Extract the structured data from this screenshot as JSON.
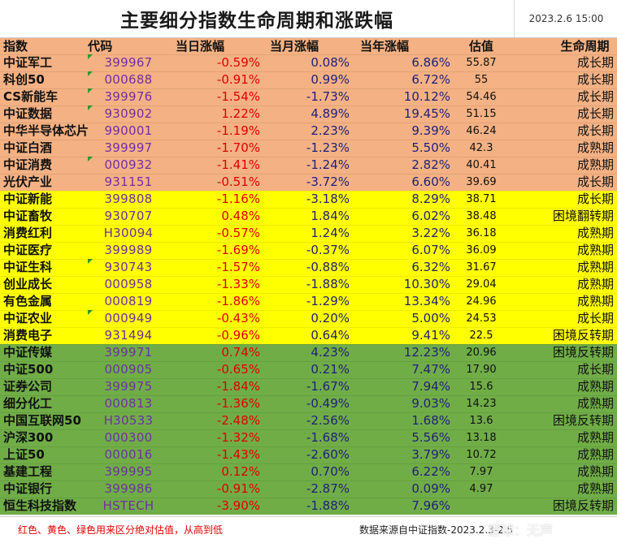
{
  "header": {
    "title": "主要细分指数生命周期和涨跌幅",
    "datetime": "2023.2.6 15:00"
  },
  "columns": [
    "指数",
    "代码",
    "当日涨幅",
    "当月涨幅",
    "当年涨幅",
    "估值",
    "生命周期"
  ],
  "group_colors": {
    "orange": "#f4b183",
    "yellow": "#ffff00",
    "green": "#70ad47"
  },
  "text_colors": {
    "negative": "#e00000",
    "code": "#7030a0",
    "values": "#1f1f7a"
  },
  "rows": [
    {
      "name": "中证军工",
      "code": "399967",
      "day": "-0.59%",
      "month": "0.08%",
      "year": "6.86%",
      "val": "55.87",
      "life": "成长期",
      "group": "orange"
    },
    {
      "name": "科创50",
      "code": "000688",
      "day": "-0.91%",
      "month": "0.99%",
      "year": "6.72%",
      "val": "55",
      "life": "成长期",
      "group": "orange"
    },
    {
      "name": "CS新能车",
      "code": "399976",
      "day": "-1.54%",
      "month": "-1.73%",
      "year": "10.12%",
      "val": "54.46",
      "life": "成长期",
      "group": "orange"
    },
    {
      "name": "中证数据",
      "code": "930902",
      "day": "1.22%",
      "month": "4.89%",
      "year": "19.45%",
      "val": "51.15",
      "life": "成长期",
      "group": "orange"
    },
    {
      "name": "中华半导体芯片",
      "code": "990001",
      "day": "-1.19%",
      "month": "2.23%",
      "year": "9.39%",
      "val": "46.24",
      "life": "成长期",
      "group": "orange"
    },
    {
      "name": "中证白酒",
      "code": "399997",
      "day": "-1.70%",
      "month": "-1.23%",
      "year": "5.50%",
      "val": "42.3",
      "life": "成熟期",
      "group": "orange"
    },
    {
      "name": "中证消费",
      "code": "000932",
      "day": "-1.41%",
      "month": "-1.24%",
      "year": "2.82%",
      "val": "40.41",
      "life": "成熟期",
      "group": "orange"
    },
    {
      "name": "光伏产业",
      "code": "931151",
      "day": "-0.51%",
      "month": "-3.72%",
      "year": "6.60%",
      "val": "39.69",
      "life": "成长期",
      "group": "orange"
    },
    {
      "name": "中证新能",
      "code": "399808",
      "day": "-1.16%",
      "month": "-3.18%",
      "year": "8.29%",
      "val": "38.71",
      "life": "成长期",
      "group": "yellow"
    },
    {
      "name": "中证畜牧",
      "code": "930707",
      "day": "0.48%",
      "month": "1.84%",
      "year": "6.02%",
      "val": "38.48",
      "life": "困境翻转期",
      "group": "yellow"
    },
    {
      "name": "消费红利",
      "code": "H30094",
      "day": "-0.57%",
      "month": "1.24%",
      "year": "3.22%",
      "val": "36.18",
      "life": "成熟期",
      "group": "yellow"
    },
    {
      "name": "中证医疗",
      "code": "399989",
      "day": "-1.69%",
      "month": "-0.37%",
      "year": "6.07%",
      "val": "36.09",
      "life": "成熟期",
      "group": "yellow"
    },
    {
      "name": "中证生科",
      "code": "930743",
      "day": "-1.57%",
      "month": "-0.88%",
      "year": "6.32%",
      "val": "31.67",
      "life": "成熟期",
      "group": "yellow"
    },
    {
      "name": "创业成长",
      "code": "000958",
      "day": "-1.33%",
      "month": "-1.88%",
      "year": "10.30%",
      "val": "29.04",
      "life": "成熟期",
      "group": "yellow"
    },
    {
      "name": "有色金属",
      "code": "000819",
      "day": "-1.86%",
      "month": "-1.29%",
      "year": "13.34%",
      "val": "24.96",
      "life": "成熟期",
      "group": "yellow"
    },
    {
      "name": "中证农业",
      "code": "000949",
      "day": "-0.43%",
      "month": "0.20%",
      "year": "5.00%",
      "val": "24.53",
      "life": "成长期",
      "group": "yellow"
    },
    {
      "name": "消费电子",
      "code": "931494",
      "day": "-0.96%",
      "month": "0.64%",
      "year": "9.41%",
      "val": "22.5",
      "life": "困境反转期",
      "group": "yellow"
    },
    {
      "name": "中证传媒",
      "code": "399971",
      "day": "0.74%",
      "month": "4.23%",
      "year": "12.23%",
      "val": "20.96",
      "life": "困境反转期",
      "group": "green"
    },
    {
      "name": "中证500",
      "code": "000905",
      "day": "-0.65%",
      "month": "0.21%",
      "year": "7.47%",
      "val": "17.90",
      "life": "成长期",
      "group": "green"
    },
    {
      "name": "证券公司",
      "code": "399975",
      "day": "-1.84%",
      "month": "-1.67%",
      "year": "7.94%",
      "val": "15.6",
      "life": "成熟期",
      "group": "green"
    },
    {
      "name": "细分化工",
      "code": "000813",
      "day": "-1.36%",
      "month": "-0.49%",
      "year": "9.03%",
      "val": "14.23",
      "life": "成熟期",
      "group": "green"
    },
    {
      "name": "中国互联网50",
      "code": "H30533",
      "day": "-2.48%",
      "month": "-2.56%",
      "year": "1.68%",
      "val": "13.6",
      "life": "困境反转期",
      "group": "green"
    },
    {
      "name": "沪深300",
      "code": "000300",
      "day": "-1.32%",
      "month": "-1.68%",
      "year": "5.56%",
      "val": "13.18",
      "life": "成熟期",
      "group": "green"
    },
    {
      "name": "上证50",
      "code": "000016",
      "day": "-1.43%",
      "month": "-2.60%",
      "year": "3.79%",
      "val": "10.72",
      "life": "成熟期",
      "group": "green"
    },
    {
      "name": "基建工程",
      "code": "399995",
      "day": "0.12%",
      "month": "0.70%",
      "year": "6.22%",
      "val": "7.97",
      "life": "成熟期",
      "group": "green"
    },
    {
      "name": "中证银行",
      "code": "399986",
      "day": "-0.91%",
      "month": "-2.87%",
      "year": "0.09%",
      "val": "4.97",
      "life": "成熟期",
      "group": "green"
    },
    {
      "name": "恒生科技指数",
      "code": "HSTECH",
      "day": "-3.90%",
      "month": "-1.88%",
      "year": "7.96%",
      "val": "",
      "life": "困境反转期",
      "group": "green"
    }
  ],
  "footer": {
    "note": "红色、黄色、绿色用来区分绝对估值，从高到低",
    "source": "数据来源自中证指数-2023.2.3-2.5",
    "watermark": "雪球：无声"
  }
}
